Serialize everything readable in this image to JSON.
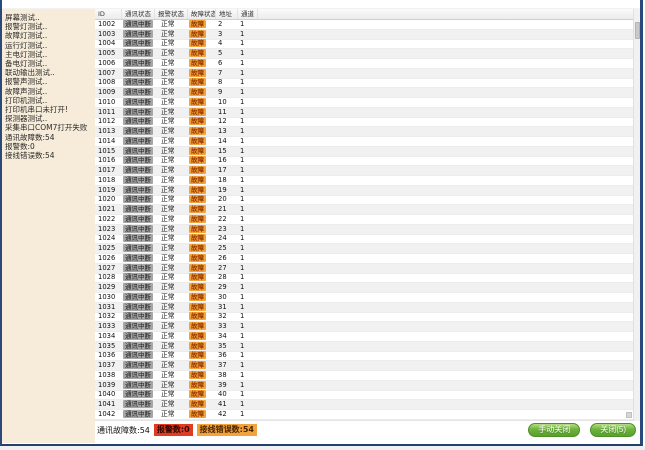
{
  "sidebar": {
    "items": [
      "屏幕测试..",
      "报警灯测试..",
      "故障灯测试..",
      "运行灯测试..",
      "主电灯测试..",
      "备电灯测试..",
      "联动输出测试..",
      "报警声测试..",
      "故障声测试..",
      "打印机测试..",
      "打印机串口未打开!",
      "探测器测试..",
      "采集串口COM7打开失败",
      "通讯故障数:54",
      "报警数:0",
      "接线错误数:54"
    ]
  },
  "table": {
    "columns": [
      "ID",
      "通讯状态",
      "报警状态",
      "故障状态",
      "地址",
      "通道"
    ],
    "rows": [
      {
        "id": "1002",
        "comm": "通讯中断",
        "alarm": "正常",
        "fault": "故障",
        "addr": "2",
        "chan": "1"
      },
      {
        "id": "1003",
        "comm": "通讯中断",
        "alarm": "正常",
        "fault": "故障",
        "addr": "3",
        "chan": "1"
      },
      {
        "id": "1004",
        "comm": "通讯中断",
        "alarm": "正常",
        "fault": "故障",
        "addr": "4",
        "chan": "1"
      },
      {
        "id": "1005",
        "comm": "通讯中断",
        "alarm": "正常",
        "fault": "故障",
        "addr": "5",
        "chan": "1"
      },
      {
        "id": "1006",
        "comm": "通讯中断",
        "alarm": "正常",
        "fault": "故障",
        "addr": "6",
        "chan": "1"
      },
      {
        "id": "1007",
        "comm": "通讯中断",
        "alarm": "正常",
        "fault": "故障",
        "addr": "7",
        "chan": "1"
      },
      {
        "id": "1008",
        "comm": "通讯中断",
        "alarm": "正常",
        "fault": "故障",
        "addr": "8",
        "chan": "1"
      },
      {
        "id": "1009",
        "comm": "通讯中断",
        "alarm": "正常",
        "fault": "故障",
        "addr": "9",
        "chan": "1"
      },
      {
        "id": "1010",
        "comm": "通讯中断",
        "alarm": "正常",
        "fault": "故障",
        "addr": "10",
        "chan": "1"
      },
      {
        "id": "1011",
        "comm": "通讯中断",
        "alarm": "正常",
        "fault": "故障",
        "addr": "11",
        "chan": "1"
      },
      {
        "id": "1012",
        "comm": "通讯中断",
        "alarm": "正常",
        "fault": "故障",
        "addr": "12",
        "chan": "1"
      },
      {
        "id": "1013",
        "comm": "通讯中断",
        "alarm": "正常",
        "fault": "故障",
        "addr": "13",
        "chan": "1"
      },
      {
        "id": "1014",
        "comm": "通讯中断",
        "alarm": "正常",
        "fault": "故障",
        "addr": "14",
        "chan": "1"
      },
      {
        "id": "1015",
        "comm": "通讯中断",
        "alarm": "正常",
        "fault": "故障",
        "addr": "15",
        "chan": "1"
      },
      {
        "id": "1016",
        "comm": "通讯中断",
        "alarm": "正常",
        "fault": "故障",
        "addr": "16",
        "chan": "1"
      },
      {
        "id": "1017",
        "comm": "通讯中断",
        "alarm": "正常",
        "fault": "故障",
        "addr": "17",
        "chan": "1"
      },
      {
        "id": "1018",
        "comm": "通讯中断",
        "alarm": "正常",
        "fault": "故障",
        "addr": "18",
        "chan": "1"
      },
      {
        "id": "1019",
        "comm": "通讯中断",
        "alarm": "正常",
        "fault": "故障",
        "addr": "19",
        "chan": "1"
      },
      {
        "id": "1020",
        "comm": "通讯中断",
        "alarm": "正常",
        "fault": "故障",
        "addr": "20",
        "chan": "1"
      },
      {
        "id": "1021",
        "comm": "通讯中断",
        "alarm": "正常",
        "fault": "故障",
        "addr": "21",
        "chan": "1"
      },
      {
        "id": "1022",
        "comm": "通讯中断",
        "alarm": "正常",
        "fault": "故障",
        "addr": "22",
        "chan": "1"
      },
      {
        "id": "1023",
        "comm": "通讯中断",
        "alarm": "正常",
        "fault": "故障",
        "addr": "23",
        "chan": "1"
      },
      {
        "id": "1024",
        "comm": "通讯中断",
        "alarm": "正常",
        "fault": "故障",
        "addr": "24",
        "chan": "1"
      },
      {
        "id": "1025",
        "comm": "通讯中断",
        "alarm": "正常",
        "fault": "故障",
        "addr": "25",
        "chan": "1"
      },
      {
        "id": "1026",
        "comm": "通讯中断",
        "alarm": "正常",
        "fault": "故障",
        "addr": "26",
        "chan": "1"
      },
      {
        "id": "1027",
        "comm": "通讯中断",
        "alarm": "正常",
        "fault": "故障",
        "addr": "27",
        "chan": "1"
      },
      {
        "id": "1028",
        "comm": "通讯中断",
        "alarm": "正常",
        "fault": "故障",
        "addr": "28",
        "chan": "1"
      },
      {
        "id": "1029",
        "comm": "通讯中断",
        "alarm": "正常",
        "fault": "故障",
        "addr": "29",
        "chan": "1"
      },
      {
        "id": "1030",
        "comm": "通讯中断",
        "alarm": "正常",
        "fault": "故障",
        "addr": "30",
        "chan": "1"
      },
      {
        "id": "1031",
        "comm": "通讯中断",
        "alarm": "正常",
        "fault": "故障",
        "addr": "31",
        "chan": "1"
      },
      {
        "id": "1032",
        "comm": "通讯中断",
        "alarm": "正常",
        "fault": "故障",
        "addr": "32",
        "chan": "1"
      },
      {
        "id": "1033",
        "comm": "通讯中断",
        "alarm": "正常",
        "fault": "故障",
        "addr": "33",
        "chan": "1"
      },
      {
        "id": "1034",
        "comm": "通讯中断",
        "alarm": "正常",
        "fault": "故障",
        "addr": "34",
        "chan": "1"
      },
      {
        "id": "1035",
        "comm": "通讯中断",
        "alarm": "正常",
        "fault": "故障",
        "addr": "35",
        "chan": "1"
      },
      {
        "id": "1036",
        "comm": "通讯中断",
        "alarm": "正常",
        "fault": "故障",
        "addr": "36",
        "chan": "1"
      },
      {
        "id": "1037",
        "comm": "通讯中断",
        "alarm": "正常",
        "fault": "故障",
        "addr": "37",
        "chan": "1"
      },
      {
        "id": "1038",
        "comm": "通讯中断",
        "alarm": "正常",
        "fault": "故障",
        "addr": "38",
        "chan": "1"
      },
      {
        "id": "1039",
        "comm": "通讯中断",
        "alarm": "正常",
        "fault": "故障",
        "addr": "39",
        "chan": "1"
      },
      {
        "id": "1040",
        "comm": "通讯中断",
        "alarm": "正常",
        "fault": "故障",
        "addr": "40",
        "chan": "1"
      },
      {
        "id": "1041",
        "comm": "通讯中断",
        "alarm": "正常",
        "fault": "故障",
        "addr": "41",
        "chan": "1"
      },
      {
        "id": "1042",
        "comm": "通讯中断",
        "alarm": "正常",
        "fault": "故障",
        "addr": "42",
        "chan": "1"
      }
    ]
  },
  "status_bar": {
    "comm_faults": "通讯故障数:54",
    "alarms": "报警数:0",
    "wiring_errors": "接线错误数:54"
  },
  "buttons": {
    "manual_close": "手动关闭",
    "close_countdown": "关闭(5)"
  },
  "colors": {
    "sidebar_bg": "#f6ecd9",
    "badge_gray": "#a6a6a6",
    "badge_orange": "#f2a33c",
    "badge_red": "#e23b23",
    "button_green": "#6db23c",
    "window_border": "#2a4a7b"
  }
}
